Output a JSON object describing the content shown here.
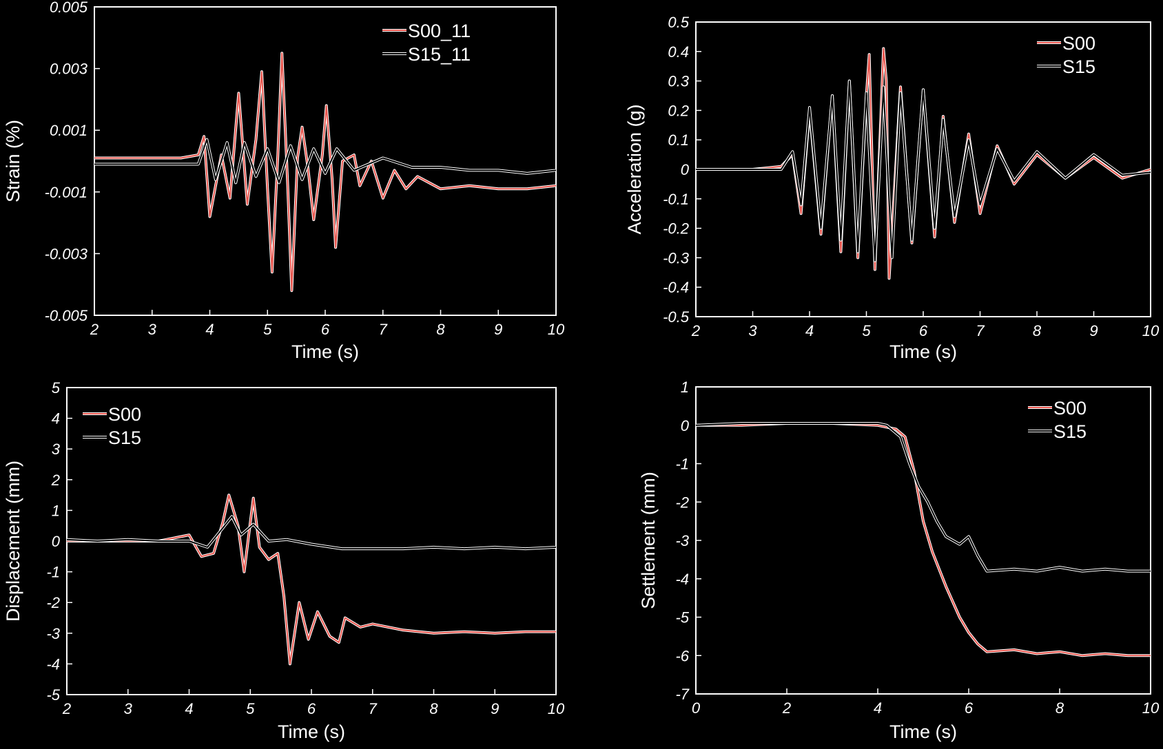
{
  "chart_data": [
    {
      "id": "strain",
      "type": "line",
      "xlabel": "Time (s)",
      "ylabel": "Strain (%)",
      "xlim": [
        2,
        10
      ],
      "ylim": [
        -0.005,
        0.005
      ],
      "xticks": [
        "2",
        "3",
        "4",
        "5",
        "6",
        "7",
        "8",
        "9",
        "10"
      ],
      "yticks": [
        "0.005",
        "0.003",
        "0.001",
        "-0.001",
        "-0.003",
        "-0.005"
      ],
      "legend_position": "top-right",
      "series": [
        {
          "name": "S00_11",
          "color": "#e8574f",
          "points": [
            [
              2,
              0.0001
            ],
            [
              2.5,
              0.0001
            ],
            [
              3,
              0.0001
            ],
            [
              3.5,
              0.0001
            ],
            [
              3.8,
              0.0002
            ],
            [
              3.9,
              0.0008
            ],
            [
              4.0,
              -0.0018
            ],
            [
              4.2,
              0.0002
            ],
            [
              4.35,
              -0.0012
            ],
            [
              4.5,
              0.0022
            ],
            [
              4.65,
              -0.0014
            ],
            [
              4.8,
              0.0007
            ],
            [
              4.9,
              0.0029
            ],
            [
              5.0,
              -0.0009
            ],
            [
              5.08,
              -0.0036
            ],
            [
              5.18,
              0.0002
            ],
            [
              5.25,
              0.0035
            ],
            [
              5.35,
              -0.0008
            ],
            [
              5.42,
              -0.0042
            ],
            [
              5.52,
              0.0001
            ],
            [
              5.6,
              0.0011
            ],
            [
              5.7,
              -0.0002
            ],
            [
              5.8,
              -0.0019
            ],
            [
              5.95,
              0.0002
            ],
            [
              6.02,
              0.0018
            ],
            [
              6.12,
              -0.0006
            ],
            [
              6.18,
              -0.0028
            ],
            [
              6.3,
              0.0
            ],
            [
              6.5,
              0.0002
            ],
            [
              6.6,
              -0.0008
            ],
            [
              6.8,
              0.0
            ],
            [
              7.0,
              -0.0012
            ],
            [
              7.2,
              -0.0003
            ],
            [
              7.4,
              -0.0009
            ],
            [
              7.6,
              -0.0005
            ],
            [
              8.0,
              -0.0009
            ],
            [
              8.5,
              -0.0008
            ],
            [
              9.0,
              -0.0009
            ],
            [
              9.5,
              -0.0009
            ],
            [
              10.0,
              -0.0008
            ]
          ]
        },
        {
          "name": "S15_11",
          "color": "#000000",
          "points": [
            [
              2,
              -0.0001
            ],
            [
              2.5,
              -0.0001
            ],
            [
              3,
              -0.0001
            ],
            [
              3.5,
              -0.0001
            ],
            [
              3.8,
              -0.0001
            ],
            [
              3.95,
              0.0007
            ],
            [
              4.1,
              -0.0006
            ],
            [
              4.3,
              0.0006
            ],
            [
              4.45,
              -0.0007
            ],
            [
              4.6,
              0.0006
            ],
            [
              4.8,
              -0.0005
            ],
            [
              5.0,
              0.0004
            ],
            [
              5.2,
              -0.0007
            ],
            [
              5.4,
              0.0005
            ],
            [
              5.6,
              -0.0006
            ],
            [
              5.8,
              0.0004
            ],
            [
              6.0,
              -0.0004
            ],
            [
              6.2,
              0.0004
            ],
            [
              6.5,
              -0.0003
            ],
            [
              7.0,
              0.0001
            ],
            [
              7.5,
              -0.0002
            ],
            [
              8.0,
              -0.0002
            ],
            [
              8.5,
              -0.0003
            ],
            [
              9.0,
              -0.0003
            ],
            [
              9.5,
              -0.0004
            ],
            [
              10.0,
              -0.0003
            ]
          ]
        }
      ]
    },
    {
      "id": "acceleration",
      "type": "line",
      "xlabel": "Time (s)",
      "ylabel": "Acceleration (g)",
      "xlim": [
        2,
        10
      ],
      "ylim": [
        -0.5,
        0.5
      ],
      "xticks": [
        "2",
        "3",
        "4",
        "5",
        "6",
        "7",
        "8",
        "9",
        "10"
      ],
      "yticks": [
        "0.5",
        "0.4",
        "0.3",
        "0.2",
        "0.1",
        "0",
        "-0.1",
        "-0.2",
        "-0.3",
        "-0.4",
        "-0.5"
      ],
      "legend_position": "top-right",
      "series": [
        {
          "name": "S00",
          "color": "#e8574f",
          "points": [
            [
              2,
              0.0
            ],
            [
              2.5,
              0.0
            ],
            [
              3,
              0.0
            ],
            [
              3.5,
              0.01
            ],
            [
              3.7,
              0.05
            ],
            [
              3.85,
              -0.15
            ],
            [
              4.0,
              0.2
            ],
            [
              4.2,
              -0.22
            ],
            [
              4.4,
              0.25
            ],
            [
              4.55,
              -0.28
            ],
            [
              4.7,
              0.3
            ],
            [
              4.85,
              -0.3
            ],
            [
              5.0,
              0.25
            ],
            [
              5.05,
              0.39
            ],
            [
              5.15,
              -0.34
            ],
            [
              5.3,
              0.41
            ],
            [
              5.35,
              0.3
            ],
            [
              5.4,
              -0.37
            ],
            [
              5.6,
              0.28
            ],
            [
              5.8,
              -0.25
            ],
            [
              6.0,
              0.27
            ],
            [
              6.2,
              -0.23
            ],
            [
              6.35,
              0.18
            ],
            [
              6.55,
              -0.18
            ],
            [
              6.8,
              0.12
            ],
            [
              7.0,
              -0.15
            ],
            [
              7.3,
              0.08
            ],
            [
              7.6,
              -0.05
            ],
            [
              8.0,
              0.05
            ],
            [
              8.5,
              -0.03
            ],
            [
              9.0,
              0.04
            ],
            [
              9.5,
              -0.03
            ],
            [
              10.0,
              0.0
            ]
          ]
        },
        {
          "name": "S15",
          "color": "#000000",
          "points": [
            [
              2,
              0.0
            ],
            [
              2.5,
              0.0
            ],
            [
              3,
              0.0
            ],
            [
              3.5,
              0.0
            ],
            [
              3.7,
              0.06
            ],
            [
              3.85,
              -0.12
            ],
            [
              4.0,
              0.21
            ],
            [
              4.2,
              -0.2
            ],
            [
              4.4,
              0.25
            ],
            [
              4.55,
              -0.24
            ],
            [
              4.7,
              0.3
            ],
            [
              4.85,
              -0.28
            ],
            [
              5.0,
              0.26
            ],
            [
              5.15,
              -0.31
            ],
            [
              5.3,
              0.28
            ],
            [
              5.45,
              -0.3
            ],
            [
              5.6,
              0.26
            ],
            [
              5.8,
              -0.24
            ],
            [
              6.0,
              0.27
            ],
            [
              6.2,
              -0.2
            ],
            [
              6.35,
              0.17
            ],
            [
              6.55,
              -0.16
            ],
            [
              6.8,
              0.1
            ],
            [
              7.0,
              -0.12
            ],
            [
              7.3,
              0.07
            ],
            [
              7.6,
              -0.04
            ],
            [
              8.0,
              0.06
            ],
            [
              8.5,
              -0.03
            ],
            [
              9.0,
              0.05
            ],
            [
              9.5,
              -0.02
            ],
            [
              10.0,
              -0.01
            ]
          ]
        }
      ]
    },
    {
      "id": "displacement",
      "type": "line",
      "xlabel": "Time (s)",
      "ylabel": "Displacement (mm)",
      "xlim": [
        2,
        10
      ],
      "ylim": [
        -5,
        5
      ],
      "xticks": [
        "2",
        "3",
        "4",
        "5",
        "6",
        "7",
        "8",
        "9",
        "10"
      ],
      "yticks": [
        "5",
        "4",
        "3",
        "2",
        "1",
        "0",
        "-1",
        "-2",
        "-3",
        "-4",
        "-5"
      ],
      "legend_position": "top-left",
      "series": [
        {
          "name": "S00",
          "color": "#e8574f",
          "points": [
            [
              2,
              0.0
            ],
            [
              2.5,
              0.0
            ],
            [
              3,
              0.0
            ],
            [
              3.5,
              0.0
            ],
            [
              4.0,
              0.2
            ],
            [
              4.2,
              -0.5
            ],
            [
              4.4,
              -0.4
            ],
            [
              4.55,
              0.6
            ],
            [
              4.65,
              1.5
            ],
            [
              4.8,
              0.5
            ],
            [
              4.9,
              -1.0
            ],
            [
              5.05,
              1.4
            ],
            [
              5.15,
              -0.2
            ],
            [
              5.3,
              -0.6
            ],
            [
              5.45,
              -0.4
            ],
            [
              5.55,
              -1.8
            ],
            [
              5.65,
              -4.0
            ],
            [
              5.8,
              -2.0
            ],
            [
              5.95,
              -3.2
            ],
            [
              6.1,
              -2.3
            ],
            [
              6.3,
              -3.1
            ],
            [
              6.45,
              -3.3
            ],
            [
              6.55,
              -2.5
            ],
            [
              6.8,
              -2.8
            ],
            [
              7.0,
              -2.7
            ],
            [
              7.5,
              -2.9
            ],
            [
              8.0,
              -3.0
            ],
            [
              8.5,
              -2.95
            ],
            [
              9.0,
              -3.0
            ],
            [
              9.5,
              -2.95
            ],
            [
              10.0,
              -2.95
            ]
          ]
        },
        {
          "name": "S15",
          "color": "#000000",
          "points": [
            [
              2,
              0.05
            ],
            [
              2.5,
              0.0
            ],
            [
              3,
              0.05
            ],
            [
              3.5,
              0.0
            ],
            [
              4.0,
              0.0
            ],
            [
              4.3,
              -0.2
            ],
            [
              4.5,
              0.3
            ],
            [
              4.7,
              0.8
            ],
            [
              4.85,
              0.2
            ],
            [
              5.05,
              0.55
            ],
            [
              5.3,
              0.0
            ],
            [
              5.6,
              0.05
            ],
            [
              6.0,
              -0.1
            ],
            [
              6.5,
              -0.25
            ],
            [
              7.0,
              -0.25
            ],
            [
              7.5,
              -0.25
            ],
            [
              8.0,
              -0.2
            ],
            [
              8.5,
              -0.25
            ],
            [
              9.0,
              -0.2
            ],
            [
              9.5,
              -0.25
            ],
            [
              10.0,
              -0.2
            ]
          ]
        }
      ]
    },
    {
      "id": "settlement",
      "type": "line",
      "xlabel": "Time (s)",
      "ylabel": "Settlement (mm)",
      "xlim": [
        0,
        10
      ],
      "ylim": [
        -7,
        1
      ],
      "xticks": [
        "0",
        "2",
        "4",
        "6",
        "8",
        "10"
      ],
      "yticks": [
        "1",
        "0",
        "-1",
        "-2",
        "-3",
        "-4",
        "-5",
        "-6",
        "-7"
      ],
      "legend_position": "top-right",
      "series": [
        {
          "name": "S00",
          "color": "#e8574f",
          "points": [
            [
              0,
              0.0
            ],
            [
              1,
              0.0
            ],
            [
              2,
              0.05
            ],
            [
              3,
              0.05
            ],
            [
              4,
              0.0
            ],
            [
              4.4,
              -0.1
            ],
            [
              4.6,
              -0.3
            ],
            [
              4.8,
              -1.2
            ],
            [
              5.0,
              -2.5
            ],
            [
              5.2,
              -3.3
            ],
            [
              5.5,
              -4.2
            ],
            [
              5.8,
              -5.0
            ],
            [
              6.0,
              -5.4
            ],
            [
              6.2,
              -5.7
            ],
            [
              6.4,
              -5.9
            ],
            [
              7.0,
              -5.85
            ],
            [
              7.5,
              -5.95
            ],
            [
              8.0,
              -5.9
            ],
            [
              8.5,
              -6.0
            ],
            [
              9.0,
              -5.95
            ],
            [
              9.5,
              -6.0
            ],
            [
              10.0,
              -6.0
            ]
          ]
        },
        {
          "name": "S15",
          "color": "#000000",
          "points": [
            [
              0,
              0.0
            ],
            [
              1,
              0.05
            ],
            [
              2,
              0.05
            ],
            [
              3,
              0.05
            ],
            [
              4,
              0.05
            ],
            [
              4.2,
              0.0
            ],
            [
              4.5,
              -0.3
            ],
            [
              4.7,
              -1.0
            ],
            [
              4.9,
              -1.6
            ],
            [
              5.1,
              -2.0
            ],
            [
              5.3,
              -2.5
            ],
            [
              5.5,
              -2.9
            ],
            [
              5.8,
              -3.1
            ],
            [
              6.0,
              -2.9
            ],
            [
              6.2,
              -3.4
            ],
            [
              6.4,
              -3.8
            ],
            [
              7.0,
              -3.75
            ],
            [
              7.5,
              -3.8
            ],
            [
              8.0,
              -3.7
            ],
            [
              8.5,
              -3.8
            ],
            [
              9.0,
              -3.75
            ],
            [
              9.5,
              -3.8
            ],
            [
              10.0,
              -3.8
            ]
          ]
        }
      ]
    }
  ]
}
